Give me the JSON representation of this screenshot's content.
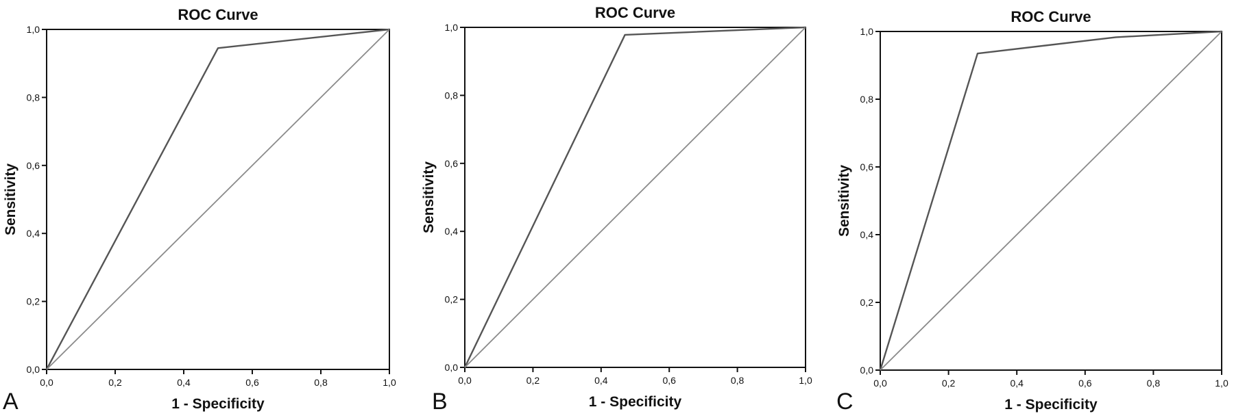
{
  "chart_data": [
    {
      "type": "line",
      "panel_label": "A",
      "title": "ROC Curve",
      "xlabel": "1 - Specificity",
      "ylabel": "Sensitivity",
      "xlim": [
        0,
        1
      ],
      "ylim": [
        0,
        1
      ],
      "xticks": [
        "0,0",
        "0,2",
        "0,4",
        "0,6",
        "0,8",
        "1,0"
      ],
      "yticks": [
        "0,0",
        "0,2",
        "0,4",
        "0,6",
        "0,8",
        "1,0"
      ],
      "grid": false,
      "series": [
        {
          "x": [
            0,
            0.5,
            1
          ],
          "y": [
            0,
            0.945,
            1
          ],
          "color": "#555555"
        },
        {
          "x": [
            0,
            1
          ],
          "y": [
            0,
            1
          ],
          "color": "#8a8a8a"
        }
      ]
    },
    {
      "type": "line",
      "panel_label": "B",
      "title": "ROC Curve",
      "xlabel": "1 - Specificity",
      "ylabel": "Sensitivity",
      "xlim": [
        0,
        1
      ],
      "ylim": [
        0,
        1
      ],
      "xticks": [
        "0,0",
        "0,2",
        "0,4",
        "0,6",
        "0,8",
        "1,0"
      ],
      "yticks": [
        "0,0",
        "0,2",
        "0,4",
        "0,6",
        "0,8",
        "1,0"
      ],
      "grid": false,
      "series": [
        {
          "x": [
            0,
            0.47,
            1
          ],
          "y": [
            0,
            0.978,
            1
          ],
          "color": "#555555"
        },
        {
          "x": [
            0,
            1
          ],
          "y": [
            0,
            1
          ],
          "color": "#8a8a8a"
        }
      ]
    },
    {
      "type": "line",
      "panel_label": "C",
      "title": "ROC Curve",
      "xlabel": "1 - Specificity",
      "ylabel": "Sensitivity",
      "xlim": [
        0,
        1
      ],
      "ylim": [
        0,
        1
      ],
      "xticks": [
        "0,0",
        "0,2",
        "0,4",
        "0,6",
        "0,8",
        "1,0"
      ],
      "yticks": [
        "0,0",
        "0,2",
        "0,4",
        "0,6",
        "0,8",
        "1,0"
      ],
      "grid": false,
      "series": [
        {
          "x": [
            0,
            0.285,
            0.69,
            1
          ],
          "y": [
            0,
            0.935,
            0.983,
            1
          ],
          "color": "#555555"
        },
        {
          "x": [
            0,
            1
          ],
          "y": [
            0,
            1
          ],
          "color": "#8a8a8a"
        }
      ]
    }
  ]
}
